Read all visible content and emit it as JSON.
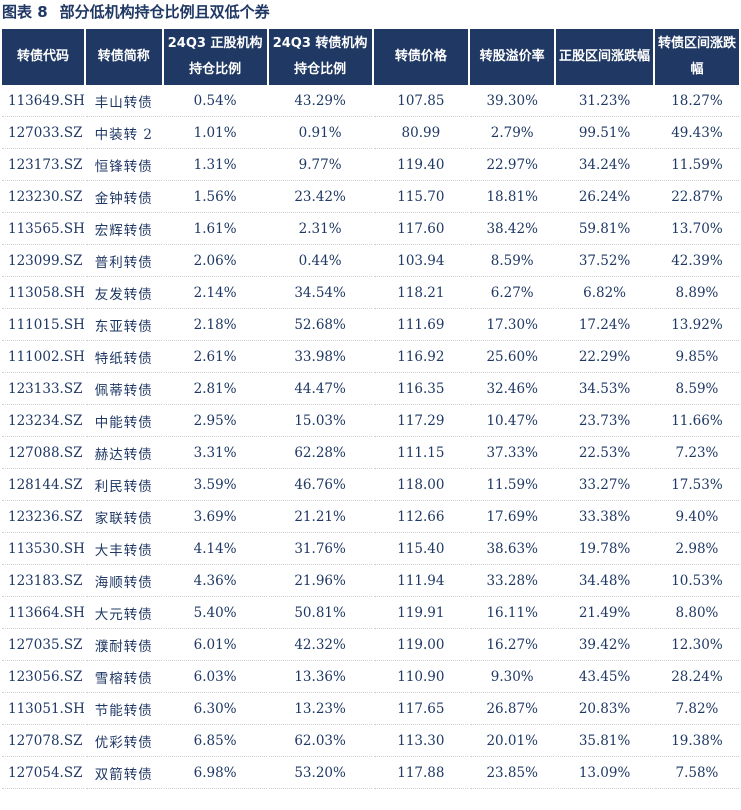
{
  "title": {
    "figure": "图表 8",
    "text": "部分低机构持仓比例且双低个券"
  },
  "headers": [
    "转债代码",
    "转债简称",
    "24Q3 正股机构持仓比例",
    "24Q3 转债机构持仓比例",
    "转债价格",
    "转股溢价率",
    "正股区间涨跌幅",
    "转债区间涨跌幅"
  ],
  "rows": [
    [
      "113649.SH",
      "丰山转债",
      "0.54%",
      "43.29%",
      "107.85",
      "39.30%",
      "31.23%",
      "18.27%"
    ],
    [
      "127033.SZ",
      "中装转 2",
      "1.01%",
      "0.91%",
      "80.99",
      "2.79%",
      "99.51%",
      "49.43%"
    ],
    [
      "123173.SZ",
      "恒锋转债",
      "1.31%",
      "9.77%",
      "119.40",
      "22.97%",
      "34.24%",
      "11.59%"
    ],
    [
      "123230.SZ",
      "金钟转债",
      "1.56%",
      "23.42%",
      "115.70",
      "18.81%",
      "26.24%",
      "22.87%"
    ],
    [
      "113565.SH",
      "宏辉转债",
      "1.61%",
      "2.31%",
      "117.60",
      "38.42%",
      "59.81%",
      "13.70%"
    ],
    [
      "123099.SZ",
      "普利转债",
      "2.06%",
      "0.44%",
      "103.94",
      "8.59%",
      "37.52%",
      "42.39%"
    ],
    [
      "113058.SH",
      "友发转债",
      "2.14%",
      "34.54%",
      "118.21",
      "6.27%",
      "6.82%",
      "8.89%"
    ],
    [
      "111015.SH",
      "东亚转债",
      "2.18%",
      "52.68%",
      "111.69",
      "17.30%",
      "17.24%",
      "13.92%"
    ],
    [
      "111002.SH",
      "特纸转债",
      "2.61%",
      "33.98%",
      "116.92",
      "25.60%",
      "22.29%",
      "9.85%"
    ],
    [
      "123133.SZ",
      "佩蒂转债",
      "2.81%",
      "44.47%",
      "116.35",
      "32.46%",
      "34.53%",
      "8.59%"
    ],
    [
      "123234.SZ",
      "中能转债",
      "2.95%",
      "15.03%",
      "117.29",
      "10.47%",
      "23.73%",
      "11.66%"
    ],
    [
      "127088.SZ",
      "赫达转债",
      "3.31%",
      "62.28%",
      "111.15",
      "37.33%",
      "22.53%",
      "7.23%"
    ],
    [
      "128144.SZ",
      "利民转债",
      "3.59%",
      "46.76%",
      "118.00",
      "11.59%",
      "33.27%",
      "17.53%"
    ],
    [
      "123236.SZ",
      "家联转债",
      "3.69%",
      "21.21%",
      "112.66",
      "17.69%",
      "33.38%",
      "9.40%"
    ],
    [
      "113530.SH",
      "大丰转债",
      "4.14%",
      "31.76%",
      "115.40",
      "38.63%",
      "19.78%",
      "2.98%"
    ],
    [
      "123183.SZ",
      "海顺转债",
      "4.36%",
      "21.96%",
      "111.94",
      "33.28%",
      "34.48%",
      "10.53%"
    ],
    [
      "113664.SH",
      "大元转债",
      "5.40%",
      "50.81%",
      "119.91",
      "16.11%",
      "21.49%",
      "8.80%"
    ],
    [
      "127035.SZ",
      "濮耐转债",
      "6.01%",
      "42.32%",
      "119.00",
      "16.27%",
      "39.42%",
      "12.30%"
    ],
    [
      "123056.SZ",
      "雪榕转债",
      "6.03%",
      "13.36%",
      "110.90",
      "9.30%",
      "43.45%",
      "28.24%"
    ],
    [
      "113051.SH",
      "节能转债",
      "6.30%",
      "13.23%",
      "117.65",
      "26.87%",
      "20.83%",
      "7.82%"
    ],
    [
      "127078.SZ",
      "优彩转债",
      "6.85%",
      "62.03%",
      "113.30",
      "20.01%",
      "35.81%",
      "19.38%"
    ],
    [
      "127054.SZ",
      "双箭转债",
      "6.98%",
      "53.20%",
      "117.88",
      "23.85%",
      "13.09%",
      "7.58%"
    ]
  ],
  "colors": {
    "header_bg": "#1f3864",
    "header_text": "#ffffff",
    "cell_text": "#1f3864"
  }
}
